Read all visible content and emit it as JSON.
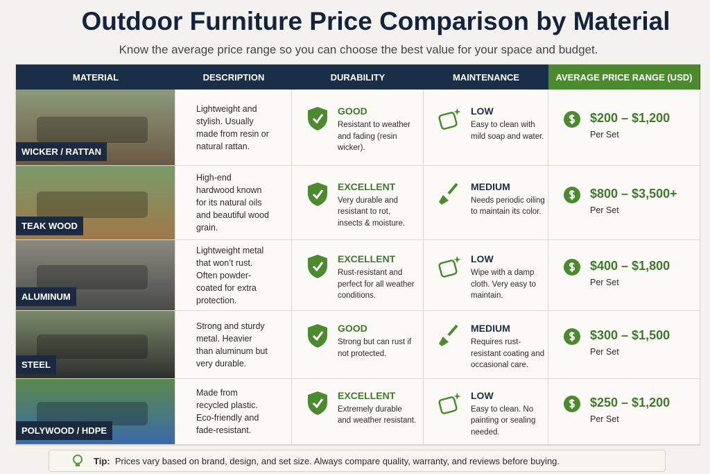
{
  "header": {
    "title": "Outdoor Furniture Price Comparison by Material",
    "subtitle": "Know the average price range so you can choose the best value for your space and budget."
  },
  "table": {
    "columns": [
      "MATERIAL",
      "DESCRIPTION",
      "DURABILITY",
      "MAINTENANCE",
      "AVERAGE PRICE RANGE (USD)"
    ],
    "rows": [
      {
        "material": "WICKER / RATTAN",
        "description": "Lightweight and stylish. Usually made from resin or natural rattan.",
        "durability": {
          "rating": "GOOD",
          "text": "Resistant to weather and fading (resin wicker)."
        },
        "maintenance": {
          "level": "LOW",
          "text": "Easy to clean with mild soap and water."
        },
        "price": {
          "range": "$200 – $1,200",
          "unit": "Per Set"
        }
      },
      {
        "material": "TEAK WOOD",
        "description": "High-end hardwood known for its natural oils and beautiful wood grain.",
        "durability": {
          "rating": "EXCELLENT",
          "text": "Very durable and resistant to rot, insects & moisture."
        },
        "maintenance": {
          "level": "MEDIUM",
          "text": "Needs periodic oiling to maintain its color."
        },
        "price": {
          "range": "$800 – $3,500+",
          "unit": "Per Set"
        }
      },
      {
        "material": "ALUMINUM",
        "description": "Lightweight metal that won’t rust. Often powder-coated for extra protection.",
        "durability": {
          "rating": "EXCELLENT",
          "text": "Rust-resistant and perfect for all weather conditions."
        },
        "maintenance": {
          "level": "LOW",
          "text": "Wipe with a damp cloth. Very easy to maintain."
        },
        "price": {
          "range": "$400 – $1,800",
          "unit": "Per Set"
        }
      },
      {
        "material": "STEEL",
        "description": "Strong and sturdy metal. Heavier than aluminum but very durable.",
        "durability": {
          "rating": "GOOD",
          "text": "Strong but can rust if not protected."
        },
        "maintenance": {
          "level": "MEDIUM",
          "text": "Requires rust-resistant coating and occasional care."
        },
        "price": {
          "range": "$300 – $1,500",
          "unit": "Per Set"
        }
      },
      {
        "material": "POLYWOOD / HDPE",
        "description": "Made from recycled plastic. Eco-friendly and fade-resistant.",
        "durability": {
          "rating": "EXCELLENT",
          "text": "Extremely durable and weather resistant."
        },
        "maintenance": {
          "level": "LOW",
          "text": "Easy to clean. No painting or sealing needed."
        },
        "price": {
          "range": "$250 – $1,200",
          "unit": "Per Set"
        }
      }
    ]
  },
  "tip": {
    "label": "Tip:",
    "text": "Prices vary based on brand, design, and set size. Always compare quality, warranty, and reviews before buying."
  }
}
